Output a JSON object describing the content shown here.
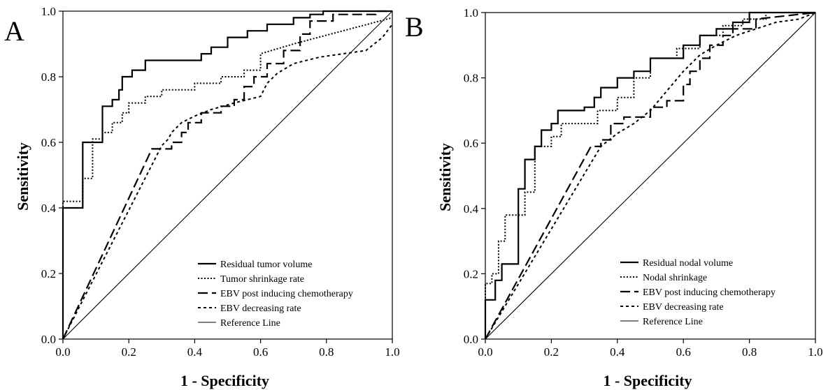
{
  "chart_data": [
    {
      "type": "line",
      "panel_label": "A",
      "xlabel": "1 - Specificity",
      "ylabel": "Sensitivity",
      "xlim": [
        0,
        1
      ],
      "ylim": [
        0,
        1
      ],
      "xticks": [
        "0.0",
        "0.2",
        "0.4",
        "0.6",
        "0.8",
        "1.0"
      ],
      "yticks": [
        "0.0",
        "0.2",
        "0.4",
        "0.6",
        "0.8",
        "1.0"
      ],
      "grid": false,
      "legend_position": "bottom-right",
      "series": [
        {
          "name": "Residual tumor volume",
          "style": "solid-thick",
          "x": [
            0,
            0,
            0.06,
            0.06,
            0.12,
            0.12,
            0.15,
            0.15,
            0.17,
            0.17,
            0.18,
            0.18,
            0.21,
            0.21,
            0.25,
            0.25,
            0.42,
            0.42,
            0.45,
            0.45,
            0.5,
            0.5,
            0.56,
            0.56,
            0.62,
            0.62,
            0.7,
            0.7,
            0.75,
            0.75,
            0.79,
            0.79,
            1.0
          ],
          "y": [
            0,
            0.4,
            0.4,
            0.6,
            0.6,
            0.71,
            0.71,
            0.73,
            0.73,
            0.76,
            0.76,
            0.8,
            0.8,
            0.82,
            0.82,
            0.85,
            0.85,
            0.87,
            0.87,
            0.89,
            0.89,
            0.92,
            0.92,
            0.94,
            0.94,
            0.96,
            0.96,
            0.98,
            0.98,
            0.99,
            0.99,
            1.0,
            1.0
          ]
        },
        {
          "name": "Tumor shrinkage rate",
          "style": "dotted",
          "x": [
            0,
            0,
            0.06,
            0.06,
            0.09,
            0.09,
            0.12,
            0.12,
            0.15,
            0.15,
            0.18,
            0.18,
            0.2,
            0.2,
            0.25,
            0.25,
            0.3,
            0.3,
            0.4,
            0.4,
            0.48,
            0.48,
            0.55,
            0.55,
            0.6,
            0.6,
            0.7,
            1.0
          ],
          "y": [
            0,
            0.42,
            0.42,
            0.49,
            0.49,
            0.61,
            0.61,
            0.63,
            0.63,
            0.66,
            0.66,
            0.69,
            0.69,
            0.72,
            0.72,
            0.74,
            0.74,
            0.76,
            0.76,
            0.78,
            0.78,
            0.8,
            0.8,
            0.82,
            0.82,
            0.87,
            0.9,
            0.98
          ]
        },
        {
          "name": "EBV post inducing chemotherapy",
          "style": "long-dash",
          "x": [
            0,
            0.27,
            0.33,
            0.33,
            0.36,
            0.36,
            0.38,
            0.38,
            0.42,
            0.42,
            0.48,
            0.48,
            0.52,
            0.52,
            0.55,
            0.55,
            0.58,
            0.58,
            0.62,
            0.62,
            0.67,
            0.67,
            0.72,
            0.72,
            0.75,
            0.75,
            0.82,
            0.82,
            0.95,
            0.95,
            1.0
          ],
          "y": [
            0,
            0.58,
            0.58,
            0.6,
            0.6,
            0.63,
            0.63,
            0.66,
            0.66,
            0.69,
            0.69,
            0.71,
            0.71,
            0.73,
            0.73,
            0.77,
            0.77,
            0.8,
            0.8,
            0.84,
            0.84,
            0.88,
            0.88,
            0.93,
            0.93,
            0.97,
            0.97,
            0.99,
            0.99,
            1.0,
            1.0
          ]
        },
        {
          "name": "EBV decreasing rate",
          "style": "short-dash",
          "x": [
            0,
            0.0,
            0.3,
            0.3,
            0.32,
            0.32,
            0.33,
            0.33,
            0.36,
            0.36,
            0.4,
            0.4,
            0.45,
            0.45,
            0.52,
            0.52,
            0.6,
            0.6,
            0.62,
            0.62,
            0.65,
            0.65,
            0.7,
            0.7,
            0.78,
            0.78,
            0.92,
            0.92,
            0.97,
            1.0
          ],
          "y": [
            0,
            0.0,
            0.59,
            0.59,
            0.61,
            0.61,
            0.63,
            0.63,
            0.66,
            0.66,
            0.68,
            0.68,
            0.7,
            0.7,
            0.72,
            0.72,
            0.74,
            0.74,
            0.78,
            0.78,
            0.81,
            0.81,
            0.84,
            0.84,
            0.86,
            0.86,
            0.88,
            0.88,
            0.92,
            0.96
          ]
        },
        {
          "name": "Reference Line",
          "style": "thin",
          "x": [
            0,
            1
          ],
          "y": [
            0,
            1
          ]
        }
      ]
    },
    {
      "type": "line",
      "panel_label": "B",
      "xlabel": "1 - Specificity",
      "ylabel": "Sensitivity",
      "xlim": [
        0,
        1
      ],
      "ylim": [
        0,
        1
      ],
      "xticks": [
        "0.0",
        "0.2",
        "0.4",
        "0.6",
        "0.8",
        "1.0"
      ],
      "yticks": [
        "0.0",
        "0.2",
        "0.4",
        "0.6",
        "0.8",
        "1.0"
      ],
      "grid": false,
      "legend_position": "bottom-right",
      "series": [
        {
          "name": "Residual nodal volume",
          "style": "solid-thick",
          "x": [
            0,
            0,
            0.03,
            0.03,
            0.05,
            0.05,
            0.1,
            0.1,
            0.12,
            0.12,
            0.15,
            0.15,
            0.17,
            0.17,
            0.2,
            0.2,
            0.22,
            0.22,
            0.3,
            0.3,
            0.33,
            0.33,
            0.35,
            0.35,
            0.4,
            0.4,
            0.45,
            0.45,
            0.5,
            0.5,
            0.6,
            0.6,
            0.65,
            0.65,
            0.7,
            0.7,
            0.75,
            0.75,
            0.8,
            0.8,
            1.0
          ],
          "y": [
            0,
            0.12,
            0.12,
            0.18,
            0.18,
            0.23,
            0.23,
            0.46,
            0.46,
            0.55,
            0.55,
            0.59,
            0.59,
            0.64,
            0.64,
            0.66,
            0.66,
            0.7,
            0.7,
            0.71,
            0.71,
            0.74,
            0.74,
            0.77,
            0.77,
            0.8,
            0.8,
            0.82,
            0.82,
            0.86,
            0.86,
            0.9,
            0.9,
            0.93,
            0.93,
            0.95,
            0.95,
            0.97,
            0.97,
            1.0,
            1.0
          ]
        },
        {
          "name": "Nodal shrinkage",
          "style": "dotted",
          "x": [
            0,
            0,
            0.02,
            0.02,
            0.04,
            0.04,
            0.06,
            0.06,
            0.12,
            0.12,
            0.15,
            0.15,
            0.2,
            0.2,
            0.23,
            0.23,
            0.34,
            0.34,
            0.4,
            0.4,
            0.45,
            0.45,
            0.5,
            0.5,
            0.58,
            0.58,
            0.65,
            0.65,
            0.72,
            0.72,
            0.78,
            0.78,
            0.85,
            0.85,
            1.0
          ],
          "y": [
            0,
            0.17,
            0.17,
            0.2,
            0.2,
            0.3,
            0.3,
            0.38,
            0.38,
            0.45,
            0.45,
            0.59,
            0.59,
            0.62,
            0.62,
            0.66,
            0.66,
            0.7,
            0.7,
            0.74,
            0.74,
            0.8,
            0.8,
            0.86,
            0.86,
            0.89,
            0.89,
            0.93,
            0.93,
            0.96,
            0.96,
            0.98,
            0.98,
            1.0,
            1.0
          ]
        },
        {
          "name": "EBV post inducing chemotherapy",
          "style": "long-dash",
          "x": [
            0,
            0.32,
            0.35,
            0.35,
            0.38,
            0.38,
            0.42,
            0.42,
            0.5,
            0.5,
            0.55,
            0.55,
            0.6,
            0.6,
            0.62,
            0.62,
            0.65,
            0.65,
            0.68,
            0.68,
            0.72,
            0.72,
            0.75,
            0.75,
            0.82,
            0.82,
            1.0
          ],
          "y": [
            0,
            0.59,
            0.59,
            0.61,
            0.61,
            0.66,
            0.66,
            0.68,
            0.68,
            0.71,
            0.71,
            0.73,
            0.73,
            0.78,
            0.78,
            0.82,
            0.82,
            0.86,
            0.86,
            0.9,
            0.9,
            0.93,
            0.93,
            0.95,
            0.95,
            0.98,
            1.0
          ]
        },
        {
          "name": "EBV decreasing rate",
          "style": "short-dash",
          "x": [
            0,
            0,
            0.35,
            0.35,
            0.4,
            0.4,
            0.45,
            0.45,
            0.5,
            0.5,
            0.55,
            0.55,
            0.6,
            0.6,
            0.65,
            0.65,
            0.7,
            0.7,
            0.76,
            0.76,
            0.82,
            0.82,
            0.88,
            0.88,
            0.95,
            1.0
          ],
          "y": [
            0,
            0,
            0.59,
            0.59,
            0.63,
            0.63,
            0.66,
            0.66,
            0.7,
            0.7,
            0.76,
            0.76,
            0.82,
            0.82,
            0.87,
            0.87,
            0.9,
            0.9,
            0.93,
            0.93,
            0.95,
            0.95,
            0.97,
            0.97,
            0.98,
            1.0
          ]
        },
        {
          "name": "Reference Line",
          "style": "thin",
          "x": [
            0,
            1
          ],
          "y": [
            0,
            1
          ]
        }
      ]
    }
  ]
}
